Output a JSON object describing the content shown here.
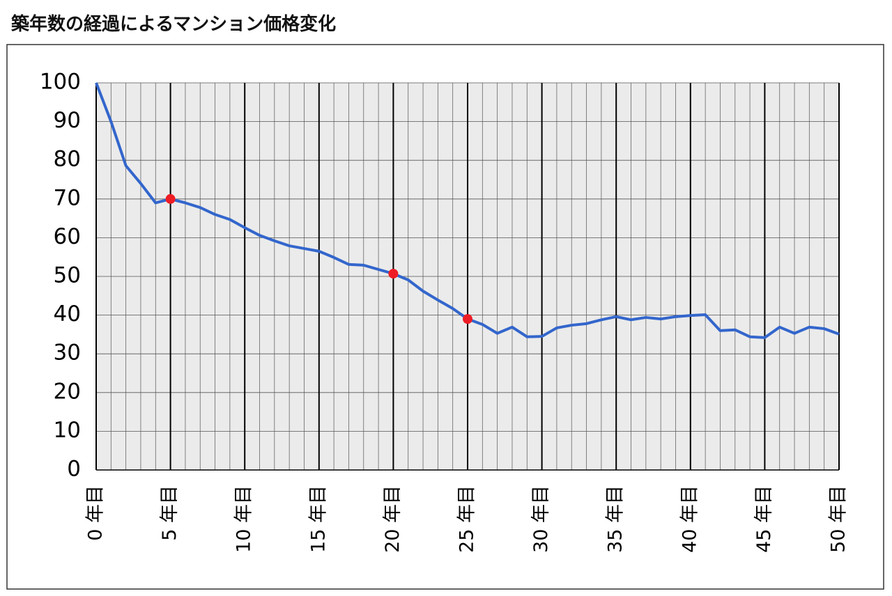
{
  "chart_data": {
    "type": "line",
    "title": "築年数の経過によるマンション価格変化",
    "x": [
      0,
      1,
      2,
      3,
      4,
      5,
      6,
      7,
      8,
      9,
      10,
      11,
      12,
      13,
      14,
      15,
      16,
      17,
      18,
      19,
      20,
      21,
      22,
      23,
      24,
      25,
      26,
      27,
      28,
      29,
      30,
      31,
      32,
      33,
      34,
      35,
      36,
      37,
      38,
      39,
      40,
      41,
      42,
      43,
      44,
      45,
      46,
      47,
      48,
      49,
      50
    ],
    "series": [
      {
        "color": "#3366cc",
        "values": [
          100,
          90,
          78.6,
          74,
          69,
          70,
          69,
          67.8,
          66,
          64.7,
          62.6,
          60.6,
          59.2,
          57.9,
          57.2,
          56.5,
          54.9,
          53.1,
          52.9,
          51.8,
          50.7,
          49.1,
          46.2,
          43.9,
          41.7,
          39,
          37.6,
          35.3,
          36.9,
          34.4,
          34.5,
          36.7,
          37.4,
          37.8,
          38.8,
          39.6,
          38.8,
          39.4,
          39,
          39.6,
          39.9,
          40.1,
          36,
          36.2,
          34.4,
          34.2,
          36.9,
          35.3,
          36.9,
          36.5,
          35.1
        ]
      }
    ],
    "highlight_x": [
      5,
      20,
      25
    ],
    "highlight_color": "#ee1c25",
    "xlim": [
      0,
      50
    ],
    "xticks": [
      {
        "value": 0,
        "label": "0 年目"
      },
      {
        "value": 5,
        "label": "5 年目"
      },
      {
        "value": 10,
        "label": "10 年目"
      },
      {
        "value": 15,
        "label": "15 年目"
      },
      {
        "value": 20,
        "label": "20 年目"
      },
      {
        "value": 25,
        "label": "25 年目"
      },
      {
        "value": 30,
        "label": "30 年目"
      },
      {
        "value": 35,
        "label": "35 年目"
      },
      {
        "value": 40,
        "label": "40 年目"
      },
      {
        "value": 45,
        "label": "45 年目"
      },
      {
        "value": 50,
        "label": "50 年目"
      }
    ],
    "ylim": [
      0,
      100
    ],
    "yticks": [
      0,
      10,
      20,
      30,
      40,
      50,
      60,
      70,
      80,
      90,
      100
    ],
    "grid": true
  }
}
